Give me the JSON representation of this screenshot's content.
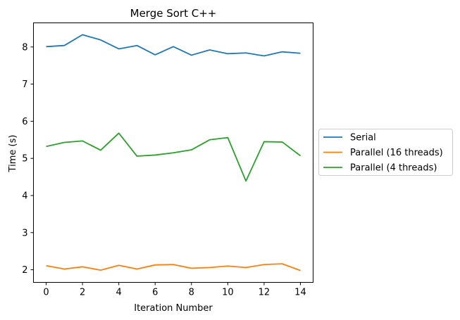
{
  "chart_data": {
    "type": "line",
    "title": "Merge Sort C++",
    "xlabel": "Iteration Number",
    "ylabel": "Time (s)",
    "x": [
      0,
      1,
      2,
      3,
      4,
      5,
      6,
      7,
      8,
      9,
      10,
      11,
      12,
      13,
      14
    ],
    "xlim": [
      -0.7,
      14.7
    ],
    "ylim": [
      1.66,
      8.65
    ],
    "xticks": [
      0,
      2,
      4,
      6,
      8,
      10,
      12,
      14
    ],
    "yticks": [
      2,
      3,
      4,
      5,
      6,
      7,
      8
    ],
    "grid": false,
    "legend_position": "outside-right",
    "series": [
      {
        "name": "Serial",
        "color": "#1f77b4",
        "values": [
          8.01,
          8.04,
          8.33,
          8.19,
          7.95,
          8.04,
          7.79,
          8.01,
          7.78,
          7.92,
          7.82,
          7.84,
          7.76,
          7.87,
          7.83
        ]
      },
      {
        "name": "Parallel (16 threads)",
        "color": "#ff7f0e",
        "values": [
          2.11,
          2.02,
          2.08,
          1.99,
          2.12,
          2.02,
          2.13,
          2.14,
          2.04,
          2.06,
          2.1,
          2.06,
          2.14,
          2.16,
          1.98
        ]
      },
      {
        "name": "Parallel (4 threads)",
        "color": "#2ca02c",
        "values": [
          5.32,
          5.43,
          5.47,
          5.22,
          5.68,
          5.06,
          5.09,
          5.15,
          5.23,
          5.5,
          5.56,
          4.39,
          5.45,
          5.44,
          5.07
        ]
      }
    ]
  }
}
